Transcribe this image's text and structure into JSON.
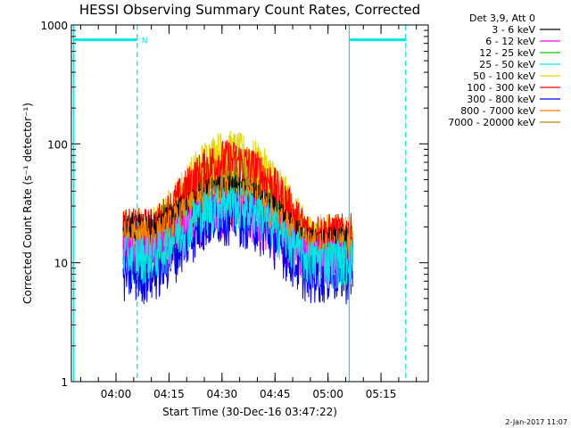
{
  "chart_data": {
    "type": "line",
    "title": "HESSI Observing Summary Count Rates, Corrected",
    "xlabel": "Start Time (30-Dec-16 03:47:22)",
    "ylabel": "Corrected Count Rate (s⁻¹ detector⁻¹)",
    "y_scale": "log",
    "ylim": [
      1,
      1000
    ],
    "xlim_minutes_after_03_47_22": [
      0,
      101
    ],
    "x_ticks": [
      "04:00",
      "04:15",
      "04:30",
      "04:45",
      "05:00",
      "05:15"
    ],
    "y_ticks": [
      "1",
      "10",
      "100",
      "1000"
    ],
    "grid": false,
    "legend_title": "Det 3,9, Att 0",
    "legend_position": "top-right-outside",
    "data_start": "04:02",
    "data_end": "05:07",
    "peak_time": "04:31",
    "series": [
      {
        "name": "3 - 6 keV",
        "color": "#000000",
        "start": 18,
        "peak": 38,
        "end": 14
      },
      {
        "name": "6 - 12 keV",
        "color": "#ff00ff",
        "start": 12,
        "peak": 28,
        "end": 11
      },
      {
        "name": "12 - 25 keV",
        "color": "#00cc00",
        "start": 18,
        "peak": 50,
        "end": 15
      },
      {
        "name": "25 - 50 keV",
        "color": "#00e5e5",
        "start": 12,
        "peak": 32,
        "end": 11
      },
      {
        "name": "50 - 100 keV",
        "color": "#e5d700",
        "start": 20,
        "peak": 90,
        "end": 18
      },
      {
        "name": "100 - 300 keV",
        "color": "#ff0000",
        "start": 20,
        "peak": 75,
        "end": 18
      },
      {
        "name": "300 - 800 keV",
        "color": "#0000ee",
        "start": 8,
        "peak": 25,
        "end": 8
      },
      {
        "name": "800 - 7000 keV",
        "color": "#ff7f00",
        "start": 16,
        "peak": 36,
        "end": 13
      },
      {
        "name": "7000 - 20000 keV",
        "color": "#b8860b",
        "start": 17,
        "peak": 65,
        "end": 15
      }
    ],
    "annotations": {
      "flag_label": "N",
      "flag_color": "#00e5e5",
      "flag_y": 750,
      "flag_bars": [
        [
          "03:48",
          "04:06"
        ],
        [
          "05:06",
          "05:22"
        ]
      ],
      "solid_lines": [
        "03:48",
        "05:06"
      ],
      "dashed_lines": [
        "04:06",
        "05:22"
      ]
    }
  },
  "footer": {
    "timestamp": "2-Jan-2017 11:07"
  }
}
